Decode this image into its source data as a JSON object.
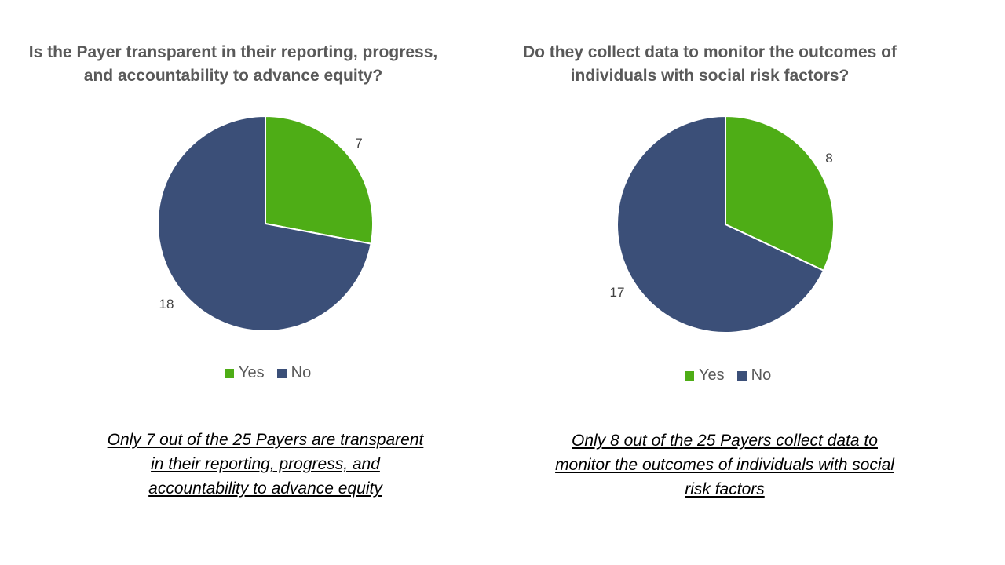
{
  "colors": {
    "yes": "#4ead16",
    "no": "#3b4f78",
    "title": "#595959",
    "label": "#404040"
  },
  "chart_data": [
    {
      "type": "pie",
      "title": "Is the Payer transparent in their reporting, progress, and accountability to advance equity?",
      "categories": [
        "Yes",
        "No"
      ],
      "values": [
        7,
        18
      ],
      "data_labels": [
        "7",
        "18"
      ],
      "legend": {
        "position": "bottom",
        "entries": [
          "Yes",
          "No"
        ]
      },
      "caption": "Only 7 out of the 25 Payers are transparent  in their reporting, progress, and accountability to advance equity"
    },
    {
      "type": "pie",
      "title": "Do they collect data to monitor the outcomes of individuals with social risk factors?",
      "categories": [
        "Yes",
        "No"
      ],
      "values": [
        8,
        17
      ],
      "data_labels": [
        "8",
        "17"
      ],
      "legend": {
        "position": "bottom",
        "entries": [
          "Yes",
          "No"
        ]
      },
      "caption": "Only 8 out of the 25 Payers collect data to monitor the outcomes of individuals with social risk factors"
    }
  ]
}
